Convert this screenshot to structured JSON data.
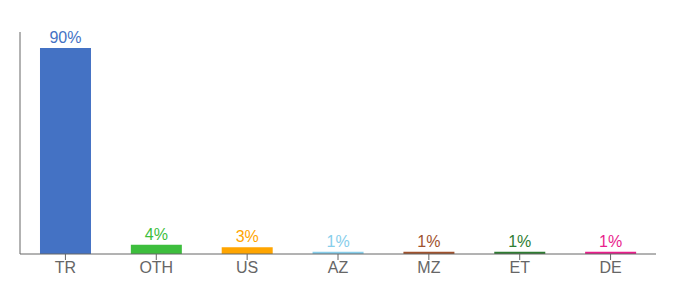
{
  "chart_data": {
    "type": "bar",
    "categories": [
      "TR",
      "OTH",
      "US",
      "AZ",
      "MZ",
      "ET",
      "DE"
    ],
    "values": [
      90,
      4,
      3,
      1,
      1,
      1,
      1
    ],
    "value_labels": [
      "90%",
      "4%",
      "3%",
      "1%",
      "1%",
      "1%",
      "1%"
    ],
    "colors": [
      "#4472C4",
      "#3DBE3D",
      "#FFA500",
      "#87CEEB",
      "#A0522D",
      "#2E7D32",
      "#E91E8C"
    ],
    "ylim": [
      0,
      97
    ],
    "data_labels": true,
    "tick_labels": "x",
    "grid": false
  }
}
